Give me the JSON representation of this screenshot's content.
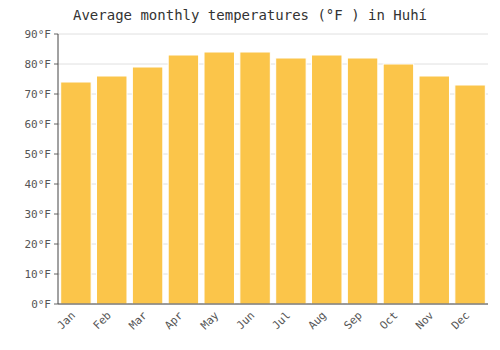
{
  "chart_data": {
    "type": "bar",
    "title": "Average monthly temperatures (°F ) in Huhí",
    "categories": [
      "Jan",
      "Feb",
      "Mar",
      "Apr",
      "May",
      "Jun",
      "Jul",
      "Aug",
      "Sep",
      "Oct",
      "Nov",
      "Dec"
    ],
    "values": [
      74,
      76,
      79,
      83,
      84,
      84,
      82,
      83,
      82,
      80,
      76,
      73
    ],
    "color": "#FBC54A",
    "ylim": [
      0,
      90
    ],
    "yticks": [
      {
        "value": 0,
        "label": "0°F"
      },
      {
        "value": 10,
        "label": "10°F"
      },
      {
        "value": 20,
        "label": "20°F"
      },
      {
        "value": 30,
        "label": "30°F"
      },
      {
        "value": 40,
        "label": "40°F"
      },
      {
        "value": 50,
        "label": "50°F"
      },
      {
        "value": 60,
        "label": "60°F"
      },
      {
        "value": 70,
        "label": "70°F"
      },
      {
        "value": 80,
        "label": "80°F"
      },
      {
        "value": 90,
        "label": "90°F"
      }
    ],
    "grid": true
  }
}
